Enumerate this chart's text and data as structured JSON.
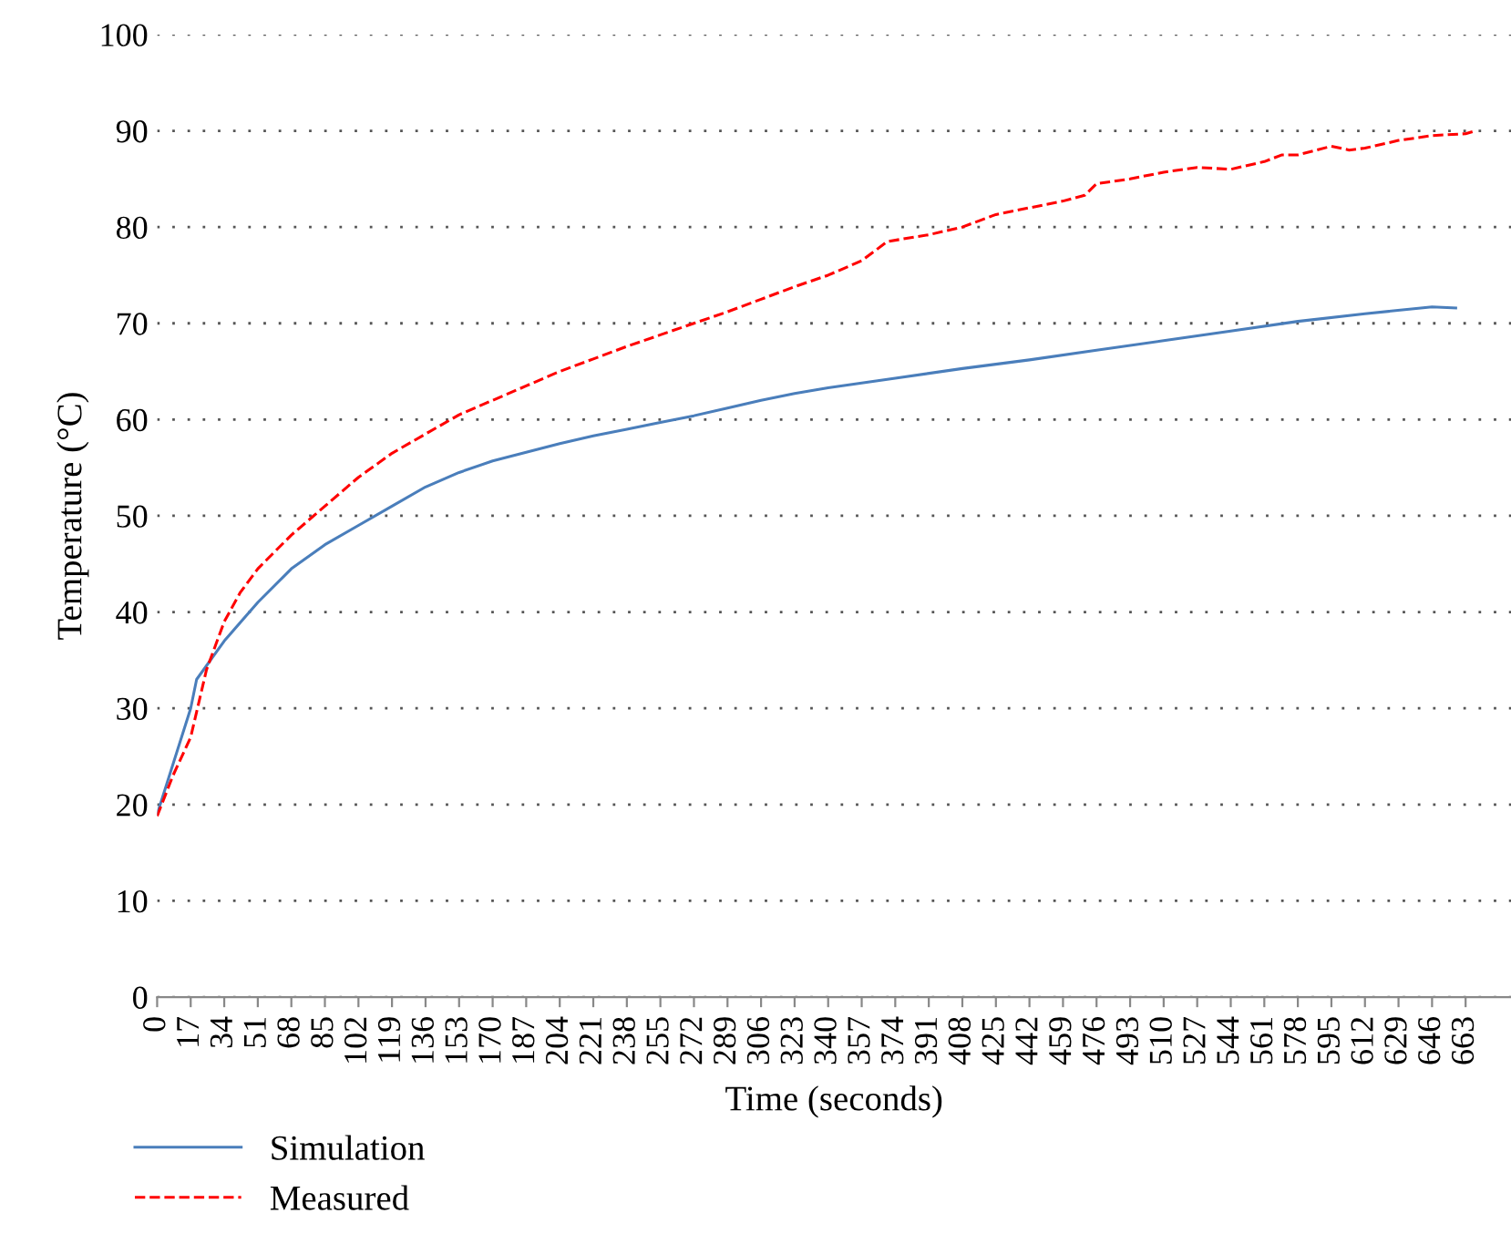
{
  "chart_data": {
    "type": "line",
    "xlabel": "Time (seconds)",
    "ylabel": "Temperature (°C)",
    "xlim": [
      0,
      686
    ],
    "xticks": [
      0,
      17,
      34,
      51,
      68,
      85,
      102,
      119,
      136,
      153,
      170,
      187,
      204,
      221,
      238,
      255,
      272,
      289,
      306,
      323,
      340,
      357,
      374,
      391,
      408,
      425,
      442,
      459,
      476,
      493,
      510,
      527,
      544,
      561,
      578,
      595,
      612,
      629,
      646,
      663
    ],
    "ylim": [
      0,
      100
    ],
    "yticks": [
      0,
      10,
      20,
      30,
      40,
      50,
      60,
      70,
      80,
      90,
      100
    ],
    "grid": "y",
    "legend": "bottom left",
    "marker": "none",
    "series": [
      {
        "name": "Simulation",
        "color": "#4a7ebb",
        "line_style": "solid",
        "x": [
          0,
          17,
          20,
          34,
          51,
          68,
          85,
          102,
          119,
          136,
          153,
          170,
          187,
          204,
          221,
          238,
          255,
          272,
          289,
          306,
          323,
          340,
          374,
          408,
          442,
          476,
          510,
          544,
          578,
          612,
          646,
          658
        ],
        "values": [
          19,
          30,
          33,
          37,
          41,
          44.5,
          47,
          49,
          51,
          53,
          54.5,
          55.7,
          56.6,
          57.5,
          58.3,
          59,
          59.7,
          60.4,
          61.2,
          62,
          62.7,
          63.3,
          64.3,
          65.3,
          66.2,
          67.2,
          68.2,
          69.2,
          70.2,
          71,
          71.7,
          71.6
        ]
      },
      {
        "name": "Measured",
        "color": "#ff0000",
        "line_style": "dashed",
        "x": [
          0,
          8,
          17,
          25,
          34,
          42,
          51,
          68,
          85,
          102,
          119,
          136,
          153,
          170,
          187,
          204,
          221,
          238,
          255,
          272,
          289,
          306,
          323,
          340,
          357,
          370,
          391,
          408,
          425,
          442,
          459,
          470,
          476,
          493,
          510,
          527,
          544,
          561,
          570,
          578,
          595,
          604,
          612,
          629,
          646,
          663,
          668
        ],
        "values": [
          18.8,
          23,
          27,
          34,
          39,
          42,
          44.5,
          48,
          51,
          54,
          56.5,
          58.5,
          60.5,
          62,
          63.5,
          65,
          66.3,
          67.6,
          68.8,
          70,
          71.2,
          72.5,
          73.8,
          75,
          76.5,
          78.5,
          79.2,
          80,
          81.3,
          82,
          82.7,
          83.3,
          84.5,
          85,
          85.7,
          86.2,
          86,
          86.8,
          87.5,
          87.5,
          88.4,
          88,
          88.2,
          89,
          89.5,
          89.7,
          90
        ]
      }
    ]
  }
}
